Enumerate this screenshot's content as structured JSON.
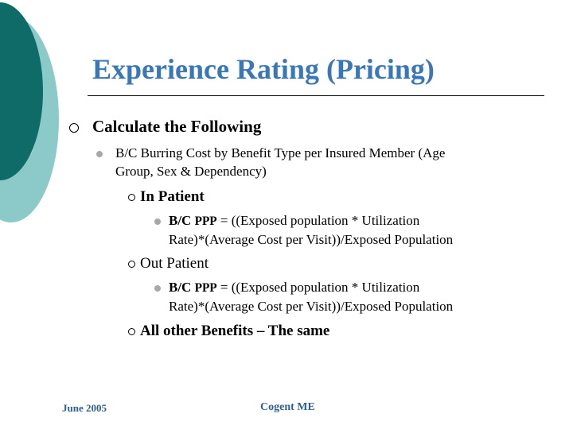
{
  "title": "Experience Rating (Pricing)",
  "l1": "Calculate the Following",
  "l2_line1": "B/C Burring Cost by Benefit Type per Insured Member (Age",
  "l2_line2": "Group, Sex & Dependency)",
  "inpatient": {
    "heading": "In Patient",
    "bc": "B/C",
    "ppp": "PPP",
    "formula_line1": "= ((Exposed population * Utilization",
    "formula_line2": "Rate)*(Average Cost per Visit))/Exposed Population"
  },
  "outpatient": {
    "heading": "Out Patient",
    "bc": "B/C",
    "ppp": "PPP",
    "formula_line1": "= ((Exposed population * Utilization",
    "formula_line2": "Rate)*(Average Cost per Visit))/Exposed Population"
  },
  "other": "All other Benefits – The same",
  "footer": {
    "date": "June 2005",
    "org": "Cogent ME"
  },
  "colors": {
    "title": "#3A77B8",
    "teal_dark": "#0E6B68",
    "teal_light": "#8CC9C9"
  }
}
